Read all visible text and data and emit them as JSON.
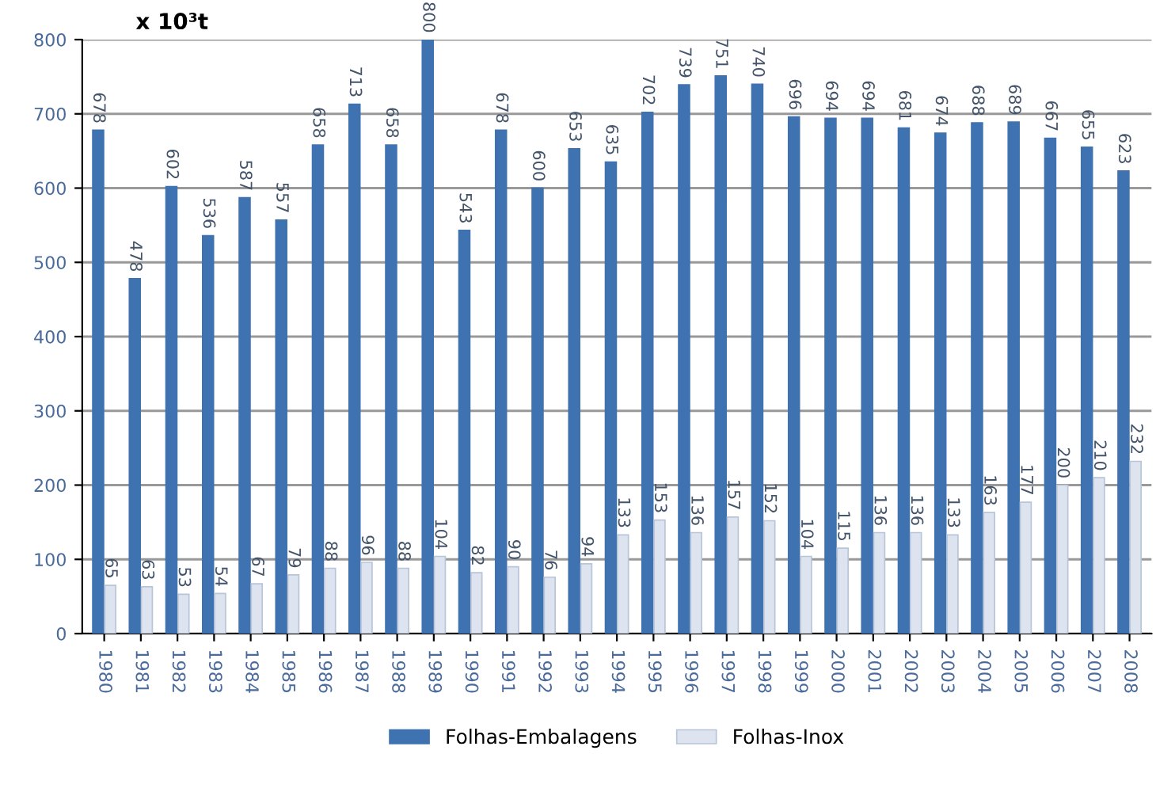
{
  "chart_data": {
    "type": "bar",
    "ylabel": "x 10³t",
    "categories": [
      "1980",
      "1981",
      "1982",
      "1983",
      "1984",
      "1985",
      "1986",
      "1987",
      "1988",
      "1989",
      "1990",
      "1991",
      "1992",
      "1993",
      "1994",
      "1995",
      "1996",
      "1997",
      "1998",
      "1999",
      "2000",
      "2001",
      "2002",
      "2003",
      "2004",
      "2005",
      "2006",
      "2007",
      "2008"
    ],
    "series": [
      {
        "name": "Folhas-Embalagens",
        "color": "#3f72b0",
        "values": [
          678,
          478,
          602,
          536,
          587,
          557,
          658,
          713,
          658,
          800,
          543,
          678,
          600,
          653,
          635,
          702,
          739,
          751,
          740,
          696,
          694,
          694,
          681,
          674,
          688,
          689,
          667,
          655,
          623
        ]
      },
      {
        "name": "Folhas-Inox",
        "color": "#dde4ef",
        "values": [
          65,
          63,
          53,
          54,
          67,
          79,
          88,
          96,
          88,
          104,
          82,
          90,
          76,
          94,
          133,
          153,
          136,
          157,
          152,
          104,
          115,
          136,
          136,
          133,
          163,
          177,
          200,
          210,
          232
        ]
      }
    ],
    "ylim": [
      0,
      800
    ],
    "yticks": [
      0,
      100,
      200,
      300,
      400,
      500,
      600,
      700,
      800
    ],
    "grid": "y",
    "legend": "bottom",
    "data_labels": true
  }
}
